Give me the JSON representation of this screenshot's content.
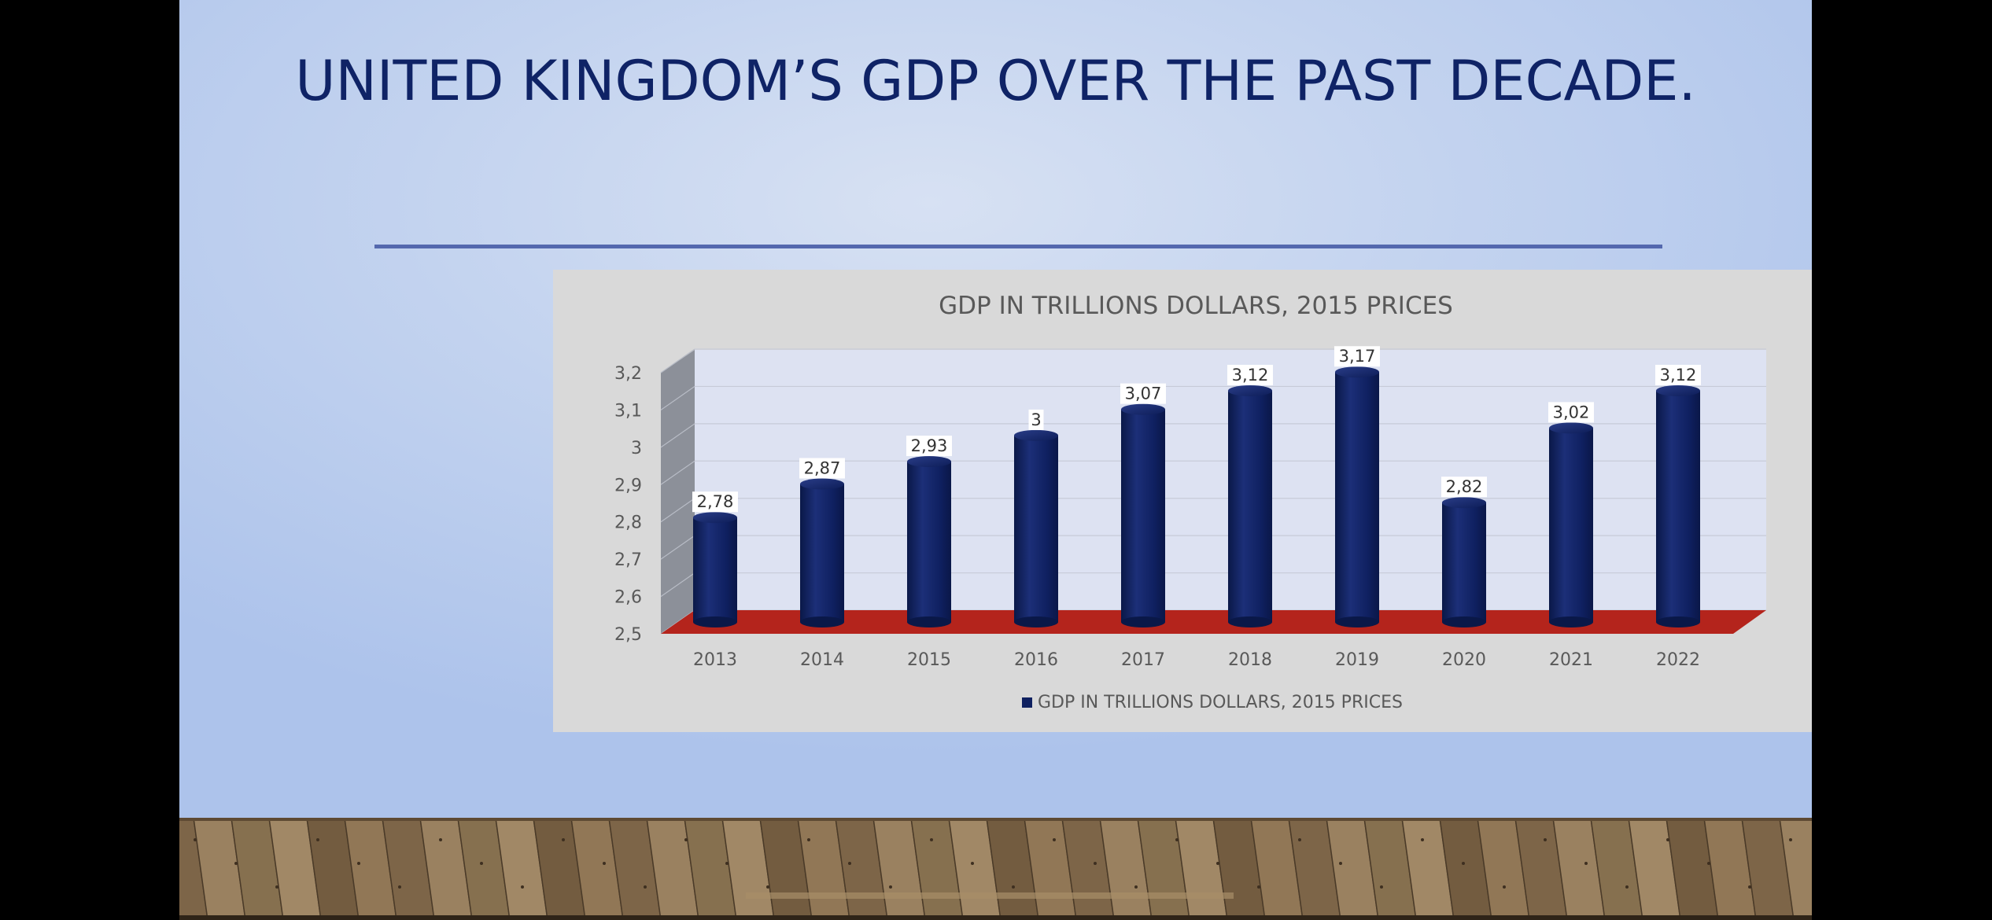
{
  "slide": {
    "title": "UNITED KINGDOM’S GDP OVER THE PAST DECADE.",
    "colors": {
      "title": "#0f2366",
      "rule": "#5468ae",
      "panel": "#d9d9d9",
      "plot_back": "#dde2f2",
      "side_wall": "#8c9099",
      "floor": "#b4241c",
      "bar": "#0f2060",
      "floor_wood": "#8c7352"
    }
  },
  "chart_data": {
    "type": "bar",
    "style": "3d-cylinder",
    "title": "GDP IN TRILLIONS DOLLARS, 2015 PRICES",
    "xlabel": "",
    "ylabel": "",
    "categories": [
      "2013",
      "2014",
      "2015",
      "2016",
      "2017",
      "2018",
      "2019",
      "2020",
      "2021",
      "2022"
    ],
    "series": [
      {
        "name": "GDP IN TRILLIONS DOLLARS, 2015 PRICES",
        "values": [
          2.78,
          2.87,
          2.93,
          3,
          3.07,
          3.12,
          3.17,
          2.82,
          3.02,
          3.12
        ],
        "data_labels": [
          "2,78",
          "2,87",
          "2,93",
          "3",
          "3,07",
          "3,12",
          "3,17",
          "2,82",
          "3,02",
          "3,12"
        ],
        "color": "#0f2060"
      }
    ],
    "ylim": [
      2.5,
      3.2
    ],
    "yticks": [
      2.5,
      2.6,
      2.7,
      2.8,
      2.9,
      3,
      3.1,
      3.2
    ],
    "ytick_labels": [
      "2,5",
      "2,6",
      "2,7",
      "2,8",
      "2,9",
      "3",
      "3,1",
      "3,2"
    ],
    "grid": true,
    "legend": {
      "position": "bottom",
      "entries": [
        "GDP IN TRILLIONS DOLLARS, 2015 PRICES"
      ]
    }
  }
}
